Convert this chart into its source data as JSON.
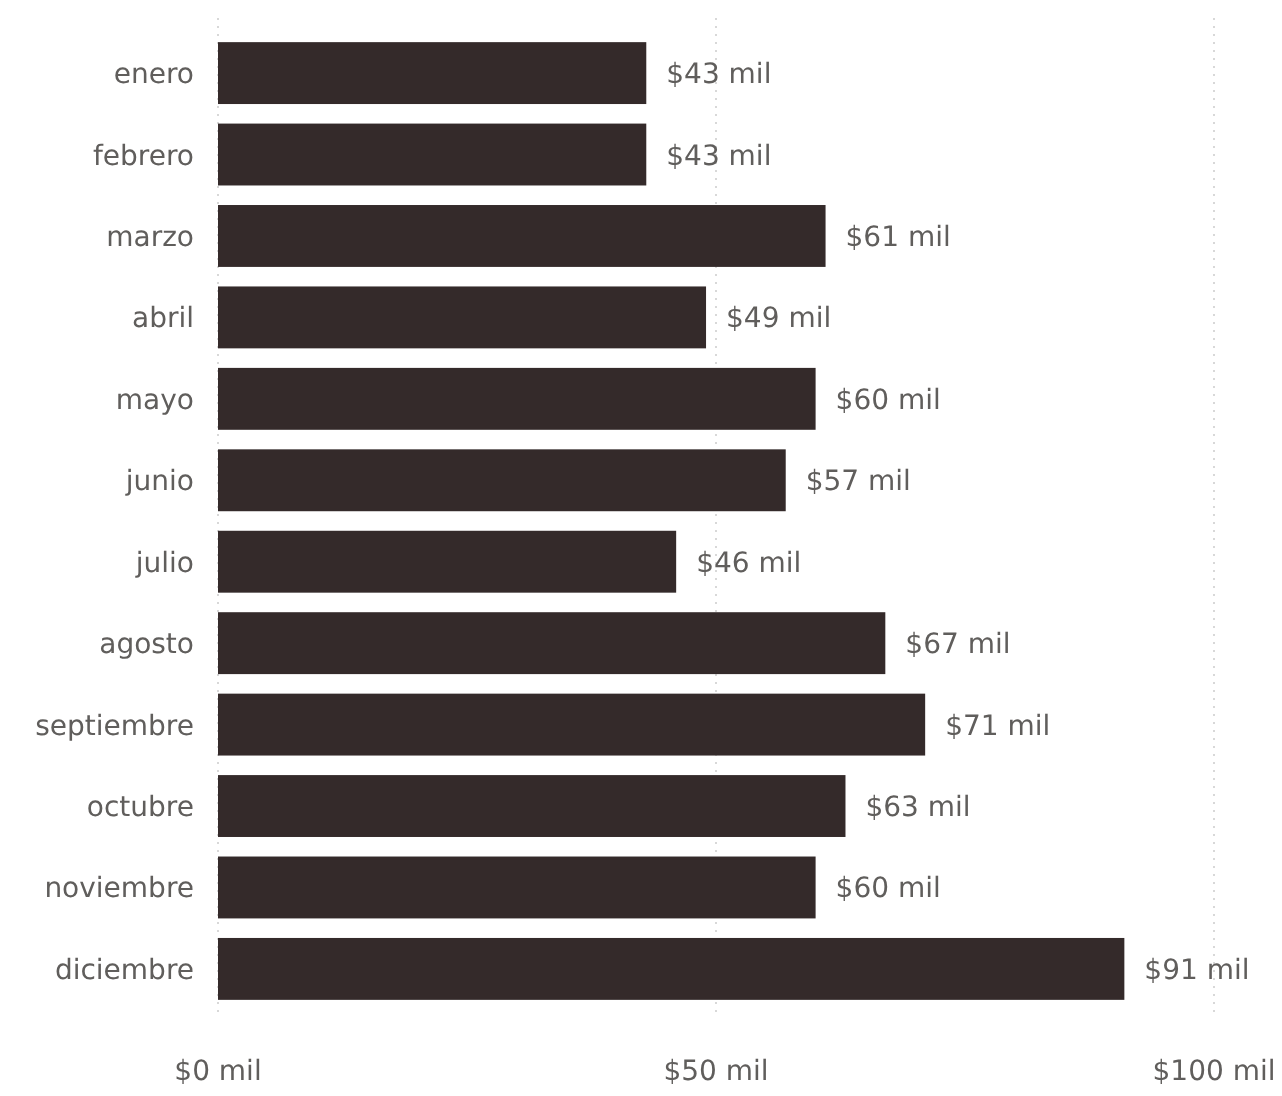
{
  "chart_data": {
    "type": "bar",
    "orientation": "horizontal",
    "categories": [
      "enero",
      "febrero",
      "marzo",
      "abril",
      "mayo",
      "junio",
      "julio",
      "agosto",
      "septiembre",
      "octubre",
      "noviembre",
      "diciembre"
    ],
    "values": [
      43,
      43,
      61,
      49,
      60,
      57,
      46,
      67,
      71,
      63,
      60,
      91
    ],
    "value_labels": [
      "$43 mil",
      "$43 mil",
      "$61 mil",
      "$49 mil",
      "$60 mil",
      "$57 mil",
      "$46 mil",
      "$67 mil",
      "$71 mil",
      "$63 mil",
      "$60 mil",
      "$91 mil"
    ],
    "color": "#342a2a",
    "xlim": [
      0,
      100
    ],
    "xticks": [
      {
        "value": 0,
        "label": "$0 mil"
      },
      {
        "value": 50,
        "label": "$50 mil"
      },
      {
        "value": 100,
        "label": "$100 mil"
      }
    ],
    "grid": "x"
  }
}
